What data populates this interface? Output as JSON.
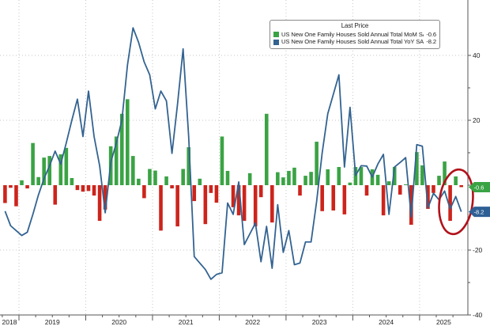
{
  "legend": {
    "title": "Last Price",
    "series": [
      {
        "label": "US New One Family Houses Sold Annual Total MoM SA",
        "last_value": "-0.6"
      },
      {
        "label": "US New One Family Houses Sold Annual Total YoY SA",
        "last_value": "-8.2"
      }
    ]
  },
  "axes": {
    "y_tick_labels": [
      "40",
      "20",
      "-20",
      "-40"
    ],
    "y_tick_values": [
      40,
      20,
      -20,
      -40
    ],
    "y_minor_tick_values": [
      30,
      10,
      0,
      -10,
      -30
    ],
    "x_year_labels": [
      "2018",
      "2019",
      "2020",
      "2021",
      "2022",
      "2023",
      "2024",
      "2025"
    ]
  },
  "price_tags": [
    {
      "label": "-0.6",
      "value": -0.6,
      "color": "#3aa344"
    },
    {
      "label": "-8.2",
      "value": -8.2,
      "color": "#2e5f95"
    }
  ],
  "annotation": {
    "shape": "ellipse",
    "purpose": "highlights latest decline",
    "color": "#b1121b"
  },
  "colors": {
    "bar_positive": "#3aa344",
    "bar_negative": "#cc241c",
    "line": "#336391",
    "grid": "#c6c6c6",
    "axis": "#555555",
    "tick_text": "#222222",
    "background": "#ffffff"
  },
  "chart_data": {
    "type": "combo",
    "title": "Last Price",
    "xlabel": "",
    "ylabel": "",
    "ylim": [
      -40,
      57
    ],
    "grid": true,
    "legend_position": "top-center",
    "x": [
      "2018-10",
      "2018-11",
      "2018-12",
      "2019-01",
      "2019-02",
      "2019-03",
      "2019-04",
      "2019-05",
      "2019-06",
      "2019-07",
      "2019-08",
      "2019-09",
      "2019-10",
      "2019-11",
      "2019-12",
      "2020-01",
      "2020-02",
      "2020-03",
      "2020-04",
      "2020-05",
      "2020-06",
      "2020-07",
      "2020-08",
      "2020-09",
      "2020-10",
      "2020-11",
      "2020-12",
      "2021-01",
      "2021-02",
      "2021-03",
      "2021-04",
      "2021-05",
      "2021-06",
      "2021-07",
      "2021-08",
      "2021-09",
      "2021-10",
      "2021-11",
      "2021-12",
      "2022-01",
      "2022-02",
      "2022-03",
      "2022-04",
      "2022-05",
      "2022-06",
      "2022-07",
      "2022-08",
      "2022-09",
      "2022-10",
      "2022-11",
      "2022-12",
      "2023-01",
      "2023-02",
      "2023-03",
      "2023-04",
      "2023-05",
      "2023-06",
      "2023-07",
      "2023-08",
      "2023-09",
      "2023-10",
      "2023-11",
      "2023-12",
      "2024-01",
      "2024-02",
      "2024-03",
      "2024-04",
      "2024-05",
      "2024-06",
      "2024-07",
      "2024-08",
      "2024-09",
      "2024-10",
      "2024-11",
      "2024-12",
      "2025-01",
      "2025-02",
      "2025-03",
      "2025-04",
      "2025-05",
      "2025-06",
      "2025-07",
      "2025-08"
    ],
    "series": [
      {
        "name": "US New One Family Houses Sold Annual Total MoM SA",
        "type": "bar",
        "values": [
          -5.5,
          -0.8,
          -6.5,
          1.5,
          -1.0,
          13.0,
          2.5,
          8.5,
          9.0,
          -6.0,
          9.5,
          11.5,
          2.2,
          -1.5,
          -2.0,
          -1.8,
          -3.2,
          -11.0,
          -7.5,
          12.0,
          15.0,
          22.0,
          26.5,
          9.0,
          2.0,
          -4.0,
          5.0,
          4.5,
          -14.0,
          2.7,
          -1.0,
          -12.7,
          5.0,
          11.7,
          -4.9,
          2.0,
          -12.0,
          -2.4,
          -5.4,
          15.0,
          4.4,
          -6.8,
          -9.3,
          -11.0,
          3.7,
          -12.7,
          -3.7,
          22.0,
          -11.5,
          4.0,
          2.4,
          4.4,
          5.4,
          -3.2,
          2.9,
          4.1,
          13.4,
          -8.0,
          4.9,
          -7.8,
          5.6,
          -9.0,
          0.8,
          5.6,
          5.6,
          -3.2,
          4.9,
          3.2,
          -9.3,
          1.2,
          5.6,
          -2.9,
          0.2,
          -12.2,
          10.2,
          6.1,
          -7.3,
          -2.4,
          2.9,
          7.3,
          -11.0,
          2.7,
          -0.6
        ]
      },
      {
        "name": "US New One Family Houses Sold Annual Total YoY SA",
        "type": "line",
        "values": [
          -8,
          -12.5,
          -14,
          -15.5,
          -14.5,
          -9,
          -3,
          2,
          6,
          10.5,
          6.5,
          13,
          20,
          26.5,
          15,
          29,
          15,
          6,
          -8.5,
          7,
          13,
          20,
          37,
          48.5,
          44,
          38,
          34,
          23.5,
          29,
          26,
          9.8,
          25,
          42,
          15,
          -22,
          -24,
          -26,
          -29,
          -27.5,
          -27,
          -5.5,
          -9,
          1,
          -18.3,
          -15,
          -11.7,
          -23.6,
          -12.7,
          -25.6,
          -6,
          -20.7,
          -14,
          -24.5,
          -24,
          -17.5,
          -17.5,
          -5,
          10,
          22,
          28,
          34,
          5.6,
          24,
          3,
          6,
          5.9,
          2.5,
          6.5,
          9.5,
          -9,
          5.6,
          7,
          8.5,
          -9.8,
          12.5,
          12,
          -7,
          -2.5,
          -4.5,
          -1.8,
          -7.3,
          -3.5,
          -8.2
        ]
      }
    ]
  }
}
